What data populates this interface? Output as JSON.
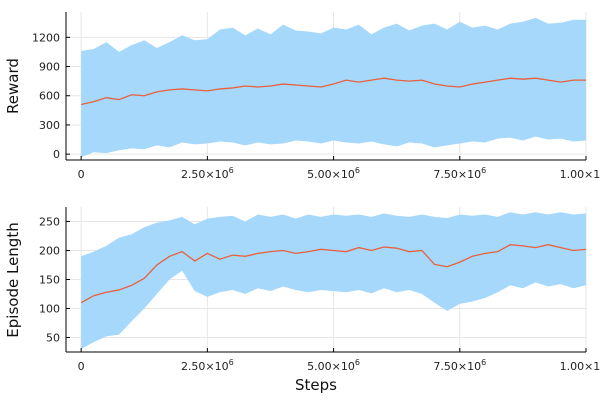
{
  "chart_data": [
    {
      "type": "line",
      "band_color": "#a6d8fb",
      "line_color": "#e8603c",
      "xlabel": "",
      "ylabel": "Reward",
      "xlim": [
        -300000,
        10000000
      ],
      "ylim": [
        -60,
        1460
      ],
      "xticks": [
        0,
        2500000,
        5000000,
        7500000,
        10000000
      ],
      "xtick_labels": [
        {
          "m": "0",
          "e": ""
        },
        {
          "m": "2.50×10",
          "e": "6"
        },
        {
          "m": "5.00×10",
          "e": "6"
        },
        {
          "m": "7.50×10",
          "e": "6"
        },
        {
          "m": "1.00×10",
          "e": "7"
        }
      ],
      "yticks": [
        0,
        300,
        600,
        900,
        1200
      ],
      "ytick_labels": [
        "0",
        "300",
        "600",
        "900",
        "1200"
      ],
      "x": [
        0,
        250000,
        500000,
        750000,
        1000000,
        1250000,
        1500000,
        1750000,
        2000000,
        2250000,
        2500000,
        2750000,
        3000000,
        3250000,
        3500000,
        3750000,
        4000000,
        4250000,
        4500000,
        4750000,
        5000000,
        5250000,
        5500000,
        5750000,
        6000000,
        6250000,
        6500000,
        6750000,
        7000000,
        7250000,
        7500000,
        7750000,
        8000000,
        8250000,
        8500000,
        8750000,
        9000000,
        9250000,
        9500000,
        9750000,
        10000000
      ],
      "series": [
        {
          "mean": [
            510,
            540,
            580,
            560,
            610,
            600,
            640,
            660,
            670,
            660,
            650,
            670,
            680,
            700,
            690,
            700,
            720,
            710,
            700,
            690,
            720,
            760,
            740,
            760,
            780,
            760,
            750,
            760,
            720,
            700,
            690,
            720,
            740,
            760,
            780,
            770,
            780,
            760,
            740,
            760,
            760
          ],
          "upper": [
            1060,
            1080,
            1150,
            1050,
            1120,
            1170,
            1090,
            1150,
            1220,
            1170,
            1180,
            1280,
            1300,
            1220,
            1290,
            1230,
            1330,
            1270,
            1260,
            1240,
            1300,
            1280,
            1330,
            1230,
            1300,
            1340,
            1270,
            1320,
            1340,
            1280,
            1360,
            1300,
            1320,
            1280,
            1340,
            1360,
            1400,
            1340,
            1350,
            1380,
            1380
          ],
          "lower": [
            -30,
            20,
            10,
            40,
            60,
            50,
            90,
            70,
            120,
            100,
            110,
            130,
            120,
            90,
            120,
            100,
            110,
            140,
            130,
            110,
            140,
            120,
            110,
            130,
            100,
            80,
            120,
            110,
            70,
            90,
            110,
            130,
            120,
            160,
            170,
            140,
            180,
            150,
            160,
            130,
            140
          ]
        }
      ]
    },
    {
      "type": "line",
      "band_color": "#a6d8fb",
      "line_color": "#e8603c",
      "xlabel": "Steps",
      "ylabel": "Episode Length",
      "xlim": [
        -300000,
        10000000
      ],
      "ylim": [
        25,
        275
      ],
      "xticks": [
        0,
        2500000,
        5000000,
        7500000,
        10000000
      ],
      "xtick_labels": [
        {
          "m": "0",
          "e": ""
        },
        {
          "m": "2.50×10",
          "e": "6"
        },
        {
          "m": "5.00×10",
          "e": "6"
        },
        {
          "m": "7.50×10",
          "e": "6"
        },
        {
          "m": "1.00×10",
          "e": "7"
        }
      ],
      "yticks": [
        50,
        100,
        150,
        200,
        250
      ],
      "ytick_labels": [
        "50",
        "100",
        "150",
        "200",
        "250"
      ],
      "x": [
        0,
        250000,
        500000,
        750000,
        1000000,
        1250000,
        1500000,
        1750000,
        2000000,
        2250000,
        2500000,
        2750000,
        3000000,
        3250000,
        3500000,
        3750000,
        4000000,
        4250000,
        4500000,
        4750000,
        5000000,
        5250000,
        5500000,
        5750000,
        6000000,
        6250000,
        6500000,
        6750000,
        7000000,
        7250000,
        7500000,
        7750000,
        8000000,
        8250000,
        8500000,
        8750000,
        9000000,
        9250000,
        9500000,
        9750000,
        10000000
      ],
      "series": [
        {
          "mean": [
            110,
            122,
            128,
            132,
            140,
            152,
            175,
            190,
            198,
            182,
            195,
            185,
            192,
            190,
            195,
            198,
            200,
            195,
            198,
            202,
            200,
            198,
            205,
            200,
            206,
            204,
            198,
            200,
            176,
            172,
            180,
            190,
            195,
            198,
            210,
            208,
            205,
            210,
            205,
            200,
            202
          ],
          "upper": [
            190,
            198,
            208,
            222,
            228,
            240,
            248,
            252,
            258,
            245,
            255,
            258,
            260,
            250,
            262,
            258,
            262,
            255,
            262,
            258,
            262,
            260,
            262,
            258,
            264,
            260,
            258,
            262,
            258,
            256,
            262,
            260,
            262,
            258,
            266,
            262,
            266,
            262,
            266,
            262,
            264
          ],
          "lower": [
            30,
            42,
            52,
            55,
            78,
            100,
            125,
            150,
            165,
            130,
            120,
            128,
            132,
            125,
            135,
            130,
            138,
            132,
            128,
            132,
            130,
            128,
            132,
            126,
            135,
            128,
            132,
            125,
            110,
            96,
            108,
            112,
            118,
            128,
            140,
            135,
            145,
            138,
            142,
            135,
            140
          ]
        }
      ]
    }
  ]
}
